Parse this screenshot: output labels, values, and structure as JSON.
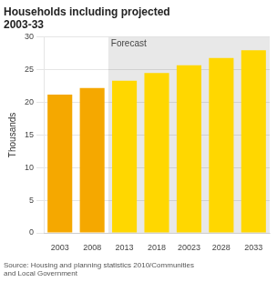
{
  "chart_data": {
    "type": "bar",
    "title": "Households including projected\n2003-33",
    "ylabel": "Thousands",
    "annotations": [
      "Forecast",
      "Source: Housing and planning statistics 2010/Communities\nand Local Government"
    ],
    "categories": [
      "2003",
      "2008",
      "2013",
      "2018",
      "20023",
      "2028",
      "2033"
    ],
    "values": [
      21.2,
      22.2,
      23.3,
      24.5,
      25.7,
      26.8,
      28.0
    ],
    "colors": [
      "#F5A800",
      "#F5A800",
      "#FFD700",
      "#FFD700",
      "#FFD700",
      "#FFD700",
      "#FFD700"
    ],
    "ylim": [
      0,
      30
    ],
    "yticks": [
      0,
      5,
      10,
      15,
      20,
      25,
      30
    ],
    "grid": true
  }
}
